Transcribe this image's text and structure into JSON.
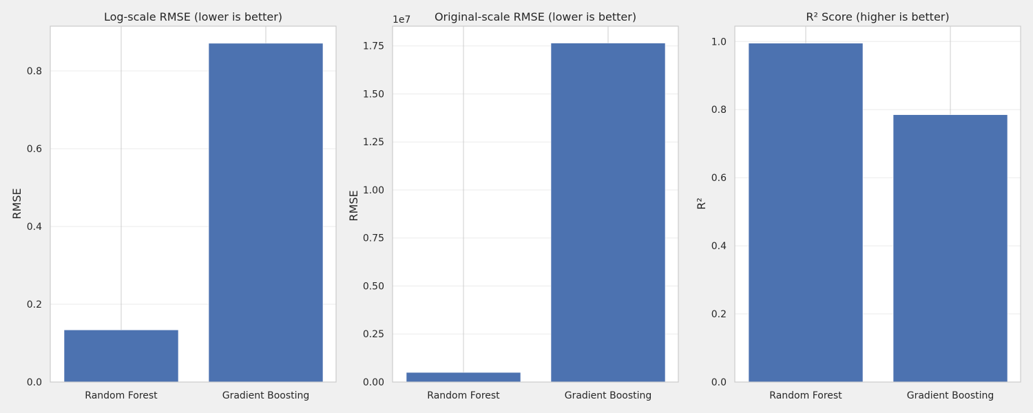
{
  "chart_data": [
    {
      "type": "bar",
      "title": "Log-scale RMSE (lower is better)",
      "xlabel": "",
      "ylabel": "RMSE",
      "categories": [
        "Random Forest",
        "Gradient Boosting"
      ],
      "values": [
        0.134,
        0.871
      ],
      "ylim": [
        0,
        0.915
      ],
      "yticks": [
        0.0,
        0.2,
        0.4,
        0.6,
        0.8
      ],
      "ytick_labels": [
        "0.0",
        "0.2",
        "0.4",
        "0.6",
        "0.8"
      ],
      "y_offset_label": "",
      "grid": true,
      "bar_color": "#4c72b0"
    },
    {
      "type": "bar",
      "title": "Original-scale RMSE (lower is better)",
      "xlabel": "",
      "ylabel": "RMSE",
      "categories": [
        "Random Forest",
        "Gradient Boosting"
      ],
      "values": [
        500000,
        17650000
      ],
      "ylim": [
        0,
        18530000
      ],
      "yticks": [
        0,
        2500000,
        5000000,
        7500000,
        10000000,
        12500000,
        15000000,
        17500000
      ],
      "ytick_labels": [
        "0.00",
        "0.25",
        "0.50",
        "0.75",
        "1.00",
        "1.25",
        "1.50",
        "1.75"
      ],
      "y_offset_label": "1e7",
      "grid": true,
      "bar_color": "#4c72b0"
    },
    {
      "type": "bar",
      "title": "R² Score (higher is better)",
      "xlabel": "",
      "ylabel": "R²",
      "categories": [
        "Random Forest",
        "Gradient Boosting"
      ],
      "values": [
        0.995,
        0.785
      ],
      "ylim": [
        0,
        1.045
      ],
      "yticks": [
        0.0,
        0.2,
        0.4,
        0.6,
        0.8,
        1.0
      ],
      "ytick_labels": [
        "0.0",
        "0.2",
        "0.4",
        "0.6",
        "0.8",
        "1.0"
      ],
      "y_offset_label": "",
      "grid": true,
      "bar_color": "#4c72b0"
    }
  ]
}
